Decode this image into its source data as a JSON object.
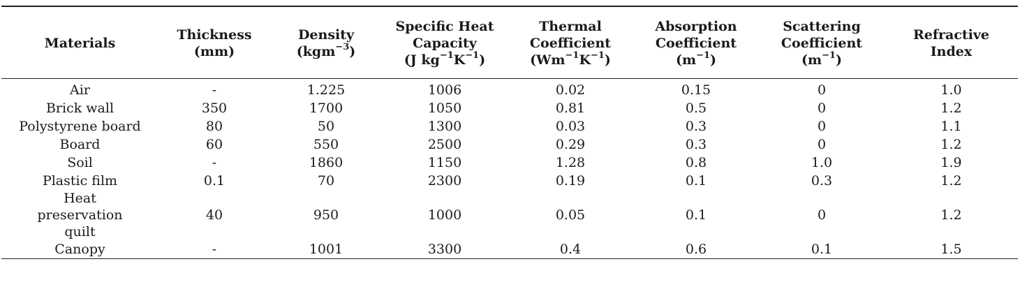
{
  "table": {
    "headers": [
      {
        "lines": [
          "Materials"
        ]
      },
      {
        "lines": [
          "Thickness",
          "(mm)"
        ]
      },
      {
        "lines": [
          "Density",
          "(kgm−3)"
        ]
      },
      {
        "lines": [
          "Specific Heat",
          "Capacity",
          "(J kg−1K−1)"
        ]
      },
      {
        "lines": [
          "Thermal",
          "Coefficient",
          "(Wm−1K−1)"
        ]
      },
      {
        "lines": [
          "Absorption",
          "Coefficient",
          "(m−1)"
        ]
      },
      {
        "lines": [
          "Scattering",
          "Coefficient",
          "(m−1)"
        ]
      },
      {
        "lines": [
          "Refractive",
          "Index"
        ]
      }
    ],
    "rows": [
      [
        "Air",
        "-",
        "1.225",
        "1006",
        "0.02",
        "0.15",
        "0",
        "1.0"
      ],
      [
        "Brick wall",
        "350",
        "1700",
        "1050",
        "0.81",
        "0.5",
        "0",
        "1.2"
      ],
      [
        "Polystyrene board",
        "80",
        "50",
        "1300",
        "0.03",
        "0.3",
        "0",
        "1.1"
      ],
      [
        "Board",
        "60",
        "550",
        "2500",
        "0.29",
        "0.3",
        "0",
        "1.2"
      ],
      [
        "Soil",
        "-",
        "1860",
        "1150",
        "1.28",
        "0.8",
        "1.0",
        "1.9"
      ],
      [
        "Plastic film",
        "0.1",
        "70",
        "2300",
        "0.19",
        "0.1",
        "0.3",
        "1.2"
      ],
      [
        "Heat preservation quilt",
        "40",
        "950",
        "1000",
        "0.05",
        "0.1",
        "0",
        "1.2"
      ],
      [
        "Canopy",
        "-",
        "1001",
        "3300",
        "0.4",
        "0.6",
        "0.1",
        "1.5"
      ]
    ]
  }
}
